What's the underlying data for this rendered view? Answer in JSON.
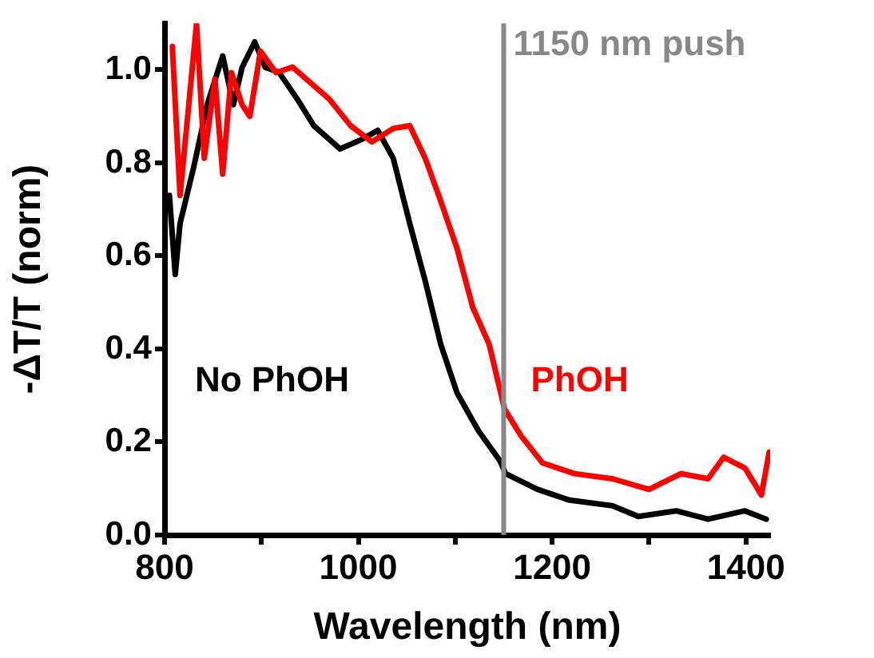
{
  "chart_data": {
    "type": "line",
    "xlabel": "Wavelength (nm)",
    "ylabel": "-ΔT/T (norm)",
    "xlim": [
      800,
      1425
    ],
    "xticks": [
      800,
      {
        "value": 900,
        "label": null
      },
      1000,
      {
        "value": 1100,
        "label": null
      },
      1200,
      {
        "value": 1300,
        "label": null
      },
      1400
    ],
    "ylim": [
      0,
      1.1
    ],
    "yticks": [
      {
        "value": 0,
        "label": "0.0"
      },
      {
        "value": 0.2,
        "label": "0.2"
      },
      {
        "value": 0.4,
        "label": "0.4"
      },
      {
        "value": 0.6,
        "label": "0.6"
      },
      {
        "value": 0.8,
        "label": "0.8"
      },
      {
        "value": 1,
        "label": "1.0"
      }
    ],
    "grid": false,
    "legend": false,
    "marker": "none",
    "line_style": "solid",
    "ref_lines": [
      {
        "axis": "x",
        "value": 1150,
        "label": "1150 nm push",
        "color": "#888888"
      }
    ],
    "series": [
      {
        "name": "PhOH",
        "color": "#ff0000",
        "x": [
          808,
          816,
          825,
          833,
          841,
          852,
          860,
          869,
          880,
          888,
          899,
          915,
          932,
          948,
          970,
          992,
          1014,
          1036,
          1053,
          1069,
          1085,
          1102,
          1118,
          1135,
          1151,
          1168,
          1190,
          1223,
          1262,
          1300,
          1333,
          1361,
          1377,
          1399,
          1416,
          1424
        ],
        "values": [
          1.05,
          0.73,
          0.925,
          1.1,
          0.81,
          0.98,
          0.776,
          0.994,
          0.925,
          0.9,
          1.04,
          0.994,
          1.006,
          0.977,
          0.937,
          0.88,
          0.845,
          0.874,
          0.88,
          0.81,
          0.718,
          0.615,
          0.49,
          0.41,
          0.27,
          0.213,
          0.155,
          0.132,
          0.121,
          0.098,
          0.132,
          0.121,
          0.167,
          0.144,
          0.086,
          0.178
        ]
      },
      {
        "name": "No PhOH",
        "color": "#000000",
        "x": [
          805,
          811,
          816,
          830,
          844,
          860,
          871,
          880,
          893,
          904,
          918,
          937,
          954,
          981,
          1003,
          1020,
          1036,
          1053,
          1069,
          1085,
          1102,
          1124,
          1146,
          1152,
          1185,
          1218,
          1262,
          1289,
          1328,
          1361,
          1399,
          1421
        ],
        "values": [
          0.73,
          0.56,
          0.67,
          0.79,
          0.925,
          1.03,
          0.925,
          1.005,
          1.06,
          1.005,
          0.995,
          0.937,
          0.88,
          0.83,
          0.85,
          0.87,
          0.81,
          0.67,
          0.546,
          0.41,
          0.305,
          0.224,
          0.16,
          0.132,
          0.098,
          0.075,
          0.063,
          0.04,
          0.052,
          0.034,
          0.052,
          0.034
        ]
      }
    ]
  }
}
